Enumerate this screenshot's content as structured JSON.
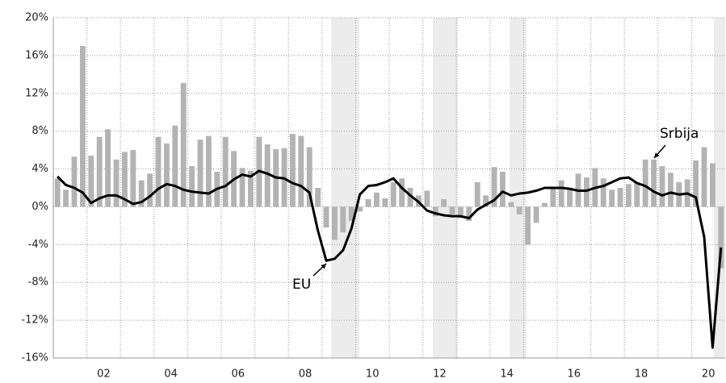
{
  "chart_data": {
    "type": "bar_line",
    "categories": [
      null,
      null,
      null,
      null,
      null,
      null,
      "02",
      null,
      null,
      null,
      null,
      null,
      null,
      null,
      "04",
      null,
      null,
      null,
      null,
      null,
      null,
      null,
      "06",
      null,
      null,
      null,
      null,
      null,
      null,
      null,
      "08",
      null,
      null,
      null,
      null,
      null,
      null,
      null,
      "10",
      null,
      null,
      null,
      null,
      null,
      null,
      null,
      "12",
      null,
      null,
      null,
      null,
      null,
      null,
      null,
      "14",
      null,
      null,
      null,
      null,
      null,
      null,
      null,
      "16",
      null,
      null,
      null,
      null,
      null,
      null,
      null,
      "18",
      null,
      null,
      null,
      null,
      null,
      null,
      null,
      "20",
      null
    ],
    "series": [
      {
        "name": "Srbija",
        "kind": "bar",
        "color": "#b3b3b3",
        "values": [
          3.0,
          1.8,
          5.3,
          17.0,
          5.4,
          7.4,
          8.2,
          5.0,
          5.8,
          6.0,
          2.8,
          3.5,
          7.4,
          6.7,
          8.6,
          13.1,
          4.3,
          7.1,
          7.5,
          3.7,
          7.4,
          5.9,
          4.1,
          3.8,
          7.4,
          6.6,
          6.1,
          6.2,
          7.7,
          7.5,
          6.3,
          2.0,
          -2.2,
          -3.5,
          -2.7,
          -1.5,
          -0.5,
          0.8,
          1.5,
          0.9,
          2.6,
          3.0,
          2.0,
          1.2,
          1.7,
          -1.0,
          0.8,
          -0.8,
          -1.2,
          -1.5,
          2.6,
          1.2,
          4.2,
          3.7,
          0.5,
          -0.8,
          -4.0,
          -1.7,
          0.4,
          2.0,
          2.8,
          2.0,
          3.5,
          3.1,
          4.1,
          3.0,
          1.8,
          2.0,
          2.4,
          2.6,
          5.0,
          5.0,
          4.3,
          3.6,
          2.6,
          2.9,
          4.9,
          6.3,
          4.6,
          -6.5
        ]
      },
      {
        "name": "EU",
        "kind": "line",
        "color": "#000000",
        "values": [
          3.2,
          2.3,
          2.0,
          1.5,
          0.4,
          0.9,
          1.2,
          1.2,
          0.8,
          0.3,
          0.5,
          1.1,
          1.9,
          2.4,
          2.2,
          1.8,
          1.6,
          1.5,
          1.4,
          1.9,
          2.2,
          2.9,
          3.4,
          3.2,
          3.8,
          3.5,
          3.1,
          3.0,
          2.5,
          2.2,
          1.5,
          -2.5,
          -5.7,
          -5.5,
          -4.6,
          -2.3,
          1.3,
          2.2,
          2.3,
          2.6,
          3.0,
          2.0,
          1.2,
          0.5,
          -0.4,
          -0.7,
          -0.9,
          -1.0,
          -1.0,
          -1.2,
          -0.3,
          0.2,
          0.7,
          1.6,
          1.2,
          1.4,
          1.5,
          1.7,
          2.0,
          2.0,
          2.0,
          1.9,
          1.7,
          1.7,
          2.0,
          2.2,
          2.6,
          3.0,
          3.1,
          2.5,
          2.2,
          1.6,
          1.2,
          1.5,
          1.3,
          1.4,
          1.0,
          -3.2,
          -14.9,
          -4.3
        ]
      }
    ],
    "annotations": [
      "EU",
      "Srbija"
    ],
    "ylim": [
      -16,
      20
    ],
    "yticks": [
      {
        "value": -16,
        "label": "-16%"
      },
      {
        "value": -12,
        "label": "-12%"
      },
      {
        "value": -8,
        "label": "-8%"
      },
      {
        "value": -4,
        "label": "-4%"
      },
      {
        "value": 0,
        "label": "0%"
      },
      {
        "value": 4,
        "label": "4%"
      },
      {
        "value": 8,
        "label": "8%"
      },
      {
        "value": 12,
        "label": "12%"
      },
      {
        "value": 16,
        "label": "16%"
      },
      {
        "value": 20,
        "label": "20%"
      }
    ],
    "grid": true
  }
}
